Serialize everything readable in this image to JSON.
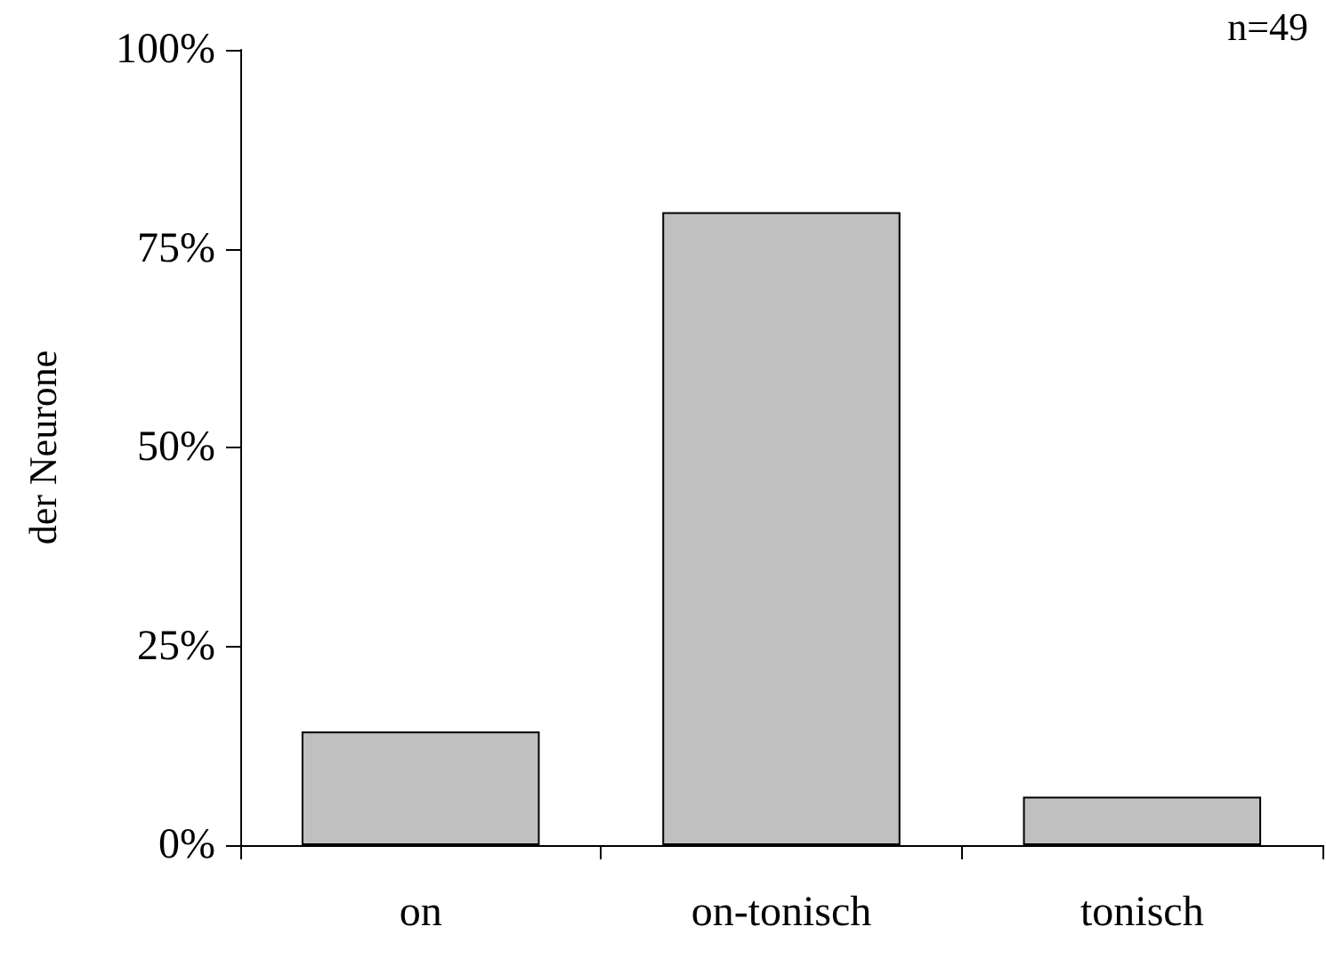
{
  "chart_data": {
    "type": "bar",
    "ylabel": "der Neurone",
    "annotations": [
      "n=49"
    ],
    "categories": [
      "on",
      "on-tonisch",
      "tonisch"
    ],
    "values": [
      14.3,
      79.6,
      6.1
    ],
    "color": "#c0c0c0",
    "ylim": [
      0,
      100
    ],
    "yticks": [
      {
        "value": 0,
        "label": "0%"
      },
      {
        "value": 25,
        "label": "25%"
      },
      {
        "value": 50,
        "label": "50%"
      },
      {
        "value": 75,
        "label": "75%"
      },
      {
        "value": 100,
        "label": "100%"
      }
    ],
    "grid": false
  }
}
